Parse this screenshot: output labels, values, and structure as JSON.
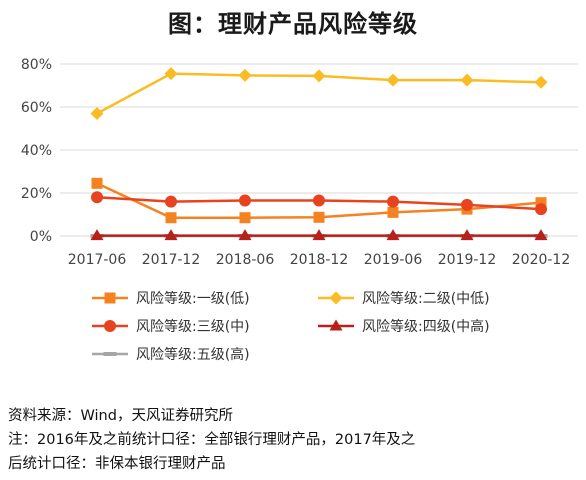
{
  "title": "图：理财产品风险等级",
  "chart_data": {
    "type": "line",
    "title": "图：理财产品风险等级",
    "categories": [
      "2017-06",
      "2017-12",
      "2018-06",
      "2018-12",
      "2019-06",
      "2019-12",
      "2020-12"
    ],
    "ylim": [
      0,
      80
    ],
    "yticks": [
      "0%",
      "20%",
      "40%",
      "60%",
      "80%"
    ],
    "ytick_values": [
      0,
      20,
      40,
      60,
      80
    ],
    "grid": true,
    "legend_position": "bottom",
    "series": [
      {
        "name": "风险等级:一级(低)",
        "values": [
          24.5,
          8.5,
          8.5,
          8.7,
          11,
          12.5,
          15.5
        ],
        "color": "#f58220",
        "marker": "square"
      },
      {
        "name": "风险等级:二级(中低)",
        "values": [
          57,
          75.5,
          74.7,
          74.5,
          72.5,
          72.5,
          71.5
        ],
        "color": "#fbbc23",
        "marker": "diamond"
      },
      {
        "name": "风险等级:三级(中)",
        "values": [
          18,
          16,
          16.5,
          16.5,
          16,
          14.5,
          12.5
        ],
        "color": "#e8431f",
        "marker": "circle"
      },
      {
        "name": "风险等级:四级(中高)",
        "values": [
          0.2,
          0.2,
          0.2,
          0.2,
          0.2,
          0.2,
          0.2
        ],
        "color": "#b8211b",
        "marker": "triangle"
      },
      {
        "name": "风险等级:五级(高)",
        "values": [
          0,
          0,
          0,
          0,
          0,
          0,
          0
        ],
        "color": "#a6a6a6",
        "marker": "dash"
      }
    ]
  },
  "footer": {
    "source": "资料来源：Wind，天风证券研究所",
    "note_line1": "注：2016年及之前统计口径：全部银行理财产品，2017年及之",
    "note_line2": "后统计口径：非保本银行理财产品"
  }
}
